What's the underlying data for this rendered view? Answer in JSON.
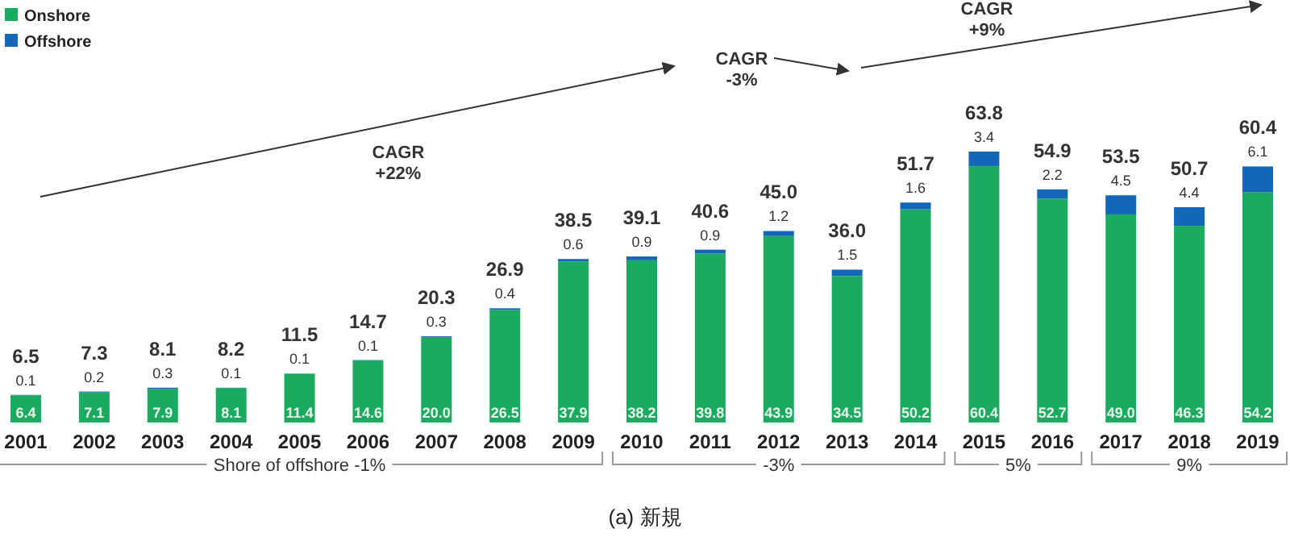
{
  "chart_data": {
    "type": "bar",
    "stacked": true,
    "categories": [
      "2001",
      "2002",
      "2003",
      "2004",
      "2005",
      "2006",
      "2007",
      "2008",
      "2009",
      "2010",
      "2011",
      "2012",
      "2013",
      "2014",
      "2015",
      "2016",
      "2017",
      "2018",
      "2019"
    ],
    "series": [
      {
        "name": "Onshore",
        "color": "#1bab60",
        "values": [
          6.4,
          7.1,
          7.9,
          8.1,
          11.4,
          14.6,
          20.0,
          26.5,
          37.9,
          38.2,
          39.8,
          43.9,
          34.5,
          50.2,
          60.4,
          52.7,
          49.0,
          46.3,
          54.2
        ],
        "value_labels": [
          "6.4",
          "7.1",
          "7.9",
          "8.1",
          "11.4",
          "14.6",
          "20.0",
          "26.5",
          "37.9",
          "38.2",
          "39.8",
          "43.9",
          "34.5",
          "50.2",
          "60.4",
          "52.7",
          "49.0",
          "46.3",
          "54.2"
        ]
      },
      {
        "name": "Offshore",
        "color": "#1466b8",
        "values": [
          0.1,
          0.2,
          0.3,
          0.1,
          0.1,
          0.1,
          0.3,
          0.4,
          0.6,
          0.9,
          0.9,
          1.2,
          1.5,
          1.6,
          3.4,
          2.2,
          4.5,
          4.4,
          6.1
        ],
        "value_labels": [
          "0.1",
          "0.2",
          "0.3",
          "0.1",
          "0.1",
          "0.1",
          "0.3",
          "0.4",
          "0.6",
          "0.9",
          "0.9",
          "1.2",
          "1.5",
          "1.6",
          "3.4",
          "2.2",
          "4.5",
          "4.4",
          "6.1"
        ]
      }
    ],
    "totals": [
      "6.5",
      "7.3",
      "8.1",
      "8.2",
      "11.5",
      "14.7",
      "20.3",
      "26.9",
      "38.5",
      "39.1",
      "40.6",
      "45.0",
      "36.0",
      "51.7",
      "63.8",
      "54.9",
      "53.5",
      "50.7",
      "60.4"
    ],
    "legend": "top left",
    "annotations": [
      "CAGR\n+22%",
      "CAGR\n-3%",
      "CAGR\n+9%",
      "Shore of offshore -1%",
      "-3%",
      "5%",
      "9%",
      "(a) 新規"
    ]
  }
}
